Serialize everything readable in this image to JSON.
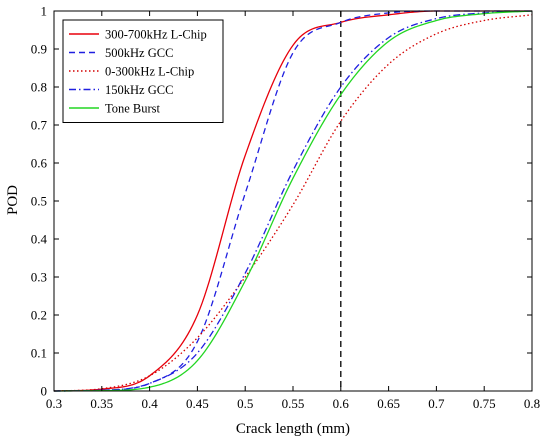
{
  "chart_data": {
    "type": "line",
    "xlabel": "Crack length (mm)",
    "ylabel": "POD",
    "xlim": [
      0.3,
      0.8
    ],
    "ylim": [
      0,
      1
    ],
    "xticks": [
      "0.3",
      "0.35",
      "0.4",
      "0.45",
      "0.5",
      "0.55",
      "0.6",
      "0.65",
      "0.7",
      "0.75",
      "0.8"
    ],
    "yticks": [
      "0",
      "0.1",
      "0.2",
      "0.3",
      "0.4",
      "0.5",
      "0.6",
      "0.7",
      "0.8",
      "0.9",
      "1"
    ],
    "grid": false,
    "legend_position": "top-left",
    "x": [
      0.3,
      0.35,
      0.4,
      0.45,
      0.5,
      0.55,
      0.6,
      0.65,
      0.7,
      0.75,
      0.8
    ],
    "series": [
      {
        "name": "300-700kHz L-Chip",
        "color": "#e8000b",
        "dash": "solid",
        "values": [
          0.0,
          0.005,
          0.04,
          0.2,
          0.62,
          0.91,
          0.97,
          0.99,
          1.0,
          1.0,
          1.0
        ]
      },
      {
        "name": "500kHz GCC",
        "color": "#1f1fe0",
        "dash": "dashed",
        "values": [
          0.0,
          0.002,
          0.02,
          0.13,
          0.52,
          0.89,
          0.97,
          0.995,
          1.0,
          1.0,
          1.0
        ]
      },
      {
        "name": "0-300kHz L-Chip",
        "color": "#d40000",
        "dash": "dotted",
        "values": [
          0.0,
          0.006,
          0.04,
          0.14,
          0.3,
          0.49,
          0.71,
          0.86,
          0.94,
          0.975,
          0.99
        ]
      },
      {
        "name": "150kHz GCC",
        "color": "#1f1fe0",
        "dash": "dashdot",
        "values": [
          0.0,
          0.002,
          0.02,
          0.1,
          0.31,
          0.58,
          0.8,
          0.93,
          0.98,
          0.995,
          1.0
        ]
      },
      {
        "name": "Tone Burst",
        "color": "#22d622",
        "dash": "solid",
        "values": [
          0.0,
          0.001,
          0.01,
          0.08,
          0.29,
          0.56,
          0.78,
          0.92,
          0.975,
          0.993,
          1.0
        ]
      }
    ],
    "annotations": [
      {
        "type": "vertical-line",
        "x": 0.6,
        "color": "#000000",
        "dash": "dashed"
      }
    ]
  }
}
